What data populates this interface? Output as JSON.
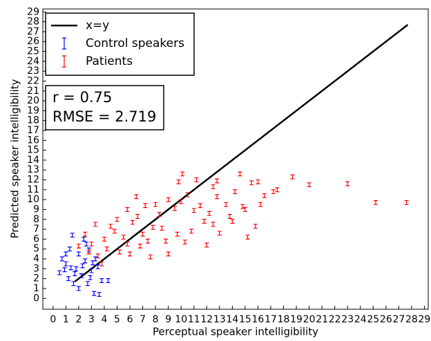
{
  "chart_data": {
    "type": "scatter",
    "x_label": "Perceptual speaker intelligibility",
    "y_label": "Predicted speaker intelligibility",
    "annotations": [
      "r = 0.75",
      "RMSE = 2.719"
    ],
    "xlim": [
      -0.8,
      29.3
    ],
    "ylim": [
      -1.1,
      29.3
    ],
    "xticks": [
      0,
      1,
      2,
      3,
      4,
      5,
      6,
      7,
      8,
      9,
      10,
      11,
      12,
      13,
      14,
      15,
      16,
      17,
      18,
      19,
      20,
      21,
      22,
      23,
      24,
      25,
      26,
      27,
      28,
      29
    ],
    "yticks": [
      0,
      1,
      2,
      3,
      4,
      5,
      6,
      7,
      8,
      9,
      10,
      11,
      12,
      13,
      14,
      15,
      16,
      17,
      18,
      19,
      20,
      21,
      22,
      23,
      24,
      25,
      26,
      27,
      28,
      29
    ],
    "legend": "upper left",
    "series": [
      {
        "name": "x=y",
        "color": "#000000",
        "kind": "line",
        "x": [
          1.7,
          27.7
        ],
        "values": [
          1.7,
          27.7
        ]
      },
      {
        "name": "Control speakers",
        "color": "#0000ff",
        "kind": "errorbar",
        "x": [
          0.5,
          0.7,
          1,
          1.2,
          1.3,
          1.5,
          1.6,
          1.8,
          2,
          2,
          2.2,
          2.4,
          2.5,
          2.7,
          2.8,
          3,
          3.2,
          3.3,
          3.5,
          3.6,
          3.8,
          4.3,
          1,
          1.4,
          2.3,
          2.9,
          1.7,
          2.6,
          3.1,
          0.9
        ],
        "values": [
          2.6,
          4.0,
          3.5,
          2,
          5,
          6.4,
          1.5,
          3,
          4.5,
          1,
          2.3,
          6,
          3.8,
          1.5,
          4.9,
          2.8,
          0.5,
          4,
          3.2,
          0.4,
          1.8,
          1.8,
          4.5,
          3.1,
          3.3,
          2.1,
          2.5,
          5.5,
          3.6,
          2.9
        ],
        "errors": [
          0.2,
          0.2,
          0.2,
          0.2,
          0.2,
          0.2,
          0.2,
          0.2,
          0.2,
          0.2,
          0.2,
          0.2,
          0.2,
          0.2,
          0.2,
          0.2,
          0.2,
          0.2,
          0.2,
          0.2,
          0.2,
          0.2,
          0.2,
          0.2,
          0.2,
          0.2,
          0.2,
          0.2,
          0.2,
          0.2
        ]
      },
      {
        "name": "Patients",
        "color": "#ff0000",
        "kind": "errorbar",
        "x": [
          27.6,
          25.2,
          23,
          20,
          18.7,
          17.5,
          16,
          15.5,
          14.6,
          12.8,
          12.5,
          10.1,
          11.2,
          9.8,
          15.8,
          15.2,
          14,
          13.5,
          12.8,
          11,
          10.5,
          9,
          8.3,
          7.2,
          6.5,
          5.8,
          5,
          4.5,
          3.3,
          4,
          3,
          2.5,
          2,
          6,
          7.6,
          9,
          10.3,
          12,
          13,
          16.5,
          17.2,
          14.8,
          11.8,
          8.5,
          7,
          5.5,
          4.2,
          3.5,
          6.8,
          8.8,
          10.8,
          12.2,
          9.5,
          6.2,
          4.8,
          2.8,
          5.2,
          7.8,
          11.5,
          13.8,
          15,
          16.2,
          3.8,
          6.6,
          8,
          10,
          12.5,
          14.2,
          9.7,
          7.4,
          5.8
        ],
        "values": [
          9.7,
          9.7,
          11.6,
          11.5,
          12.3,
          11,
          11.8,
          11.7,
          12.6,
          11.9,
          11.3,
          12.6,
          12,
          11.8,
          7.3,
          6.2,
          7.8,
          9.5,
          10.3,
          8.9,
          10.5,
          10,
          8.5,
          9.4,
          10.3,
          9,
          8,
          7.3,
          7.5,
          6,
          5.5,
          6.5,
          5.3,
          4.5,
          4.2,
          4.5,
          5.7,
          5.4,
          6.6,
          10.4,
          10.8,
          9.3,
          7.8,
          7.1,
          6.5,
          6.2,
          5,
          4.3,
          5.3,
          5.8,
          6.8,
          8.6,
          9.1,
          7.7,
          6.8,
          4.7,
          4.7,
          7.2,
          9.4,
          8.3,
          9,
          9.5,
          3.5,
          8.3,
          9.5,
          9.8,
          7.5,
          10.8,
          6.5,
          5.8,
          5.5
        ],
        "errors": [
          0.2,
          0.2,
          0.2,
          0.2,
          0.2,
          0.2,
          0.2,
          0.2,
          0.2,
          0.2,
          0.2,
          0.2,
          0.2,
          0.2,
          0.2,
          0.2,
          0.2,
          0.2,
          0.2,
          0.2,
          0.2,
          0.2,
          0.2,
          0.2,
          0.2,
          0.2,
          0.2,
          0.2,
          0.2,
          0.2,
          0.2,
          0.2,
          0.2,
          0.2,
          0.2,
          0.2,
          0.2,
          0.2,
          0.2,
          0.2,
          0.2,
          0.2,
          0.2,
          0.2,
          0.2,
          0.2,
          0.2,
          0.2,
          0.2,
          0.2,
          0.2,
          0.2,
          0.2,
          0.2,
          0.2,
          0.2,
          0.2,
          0.2,
          0.2,
          0.2,
          0.2,
          0.2,
          0.2,
          0.2,
          0.2,
          0.2,
          0.2,
          0.2,
          0.2,
          0.2,
          0.2
        ]
      }
    ]
  }
}
